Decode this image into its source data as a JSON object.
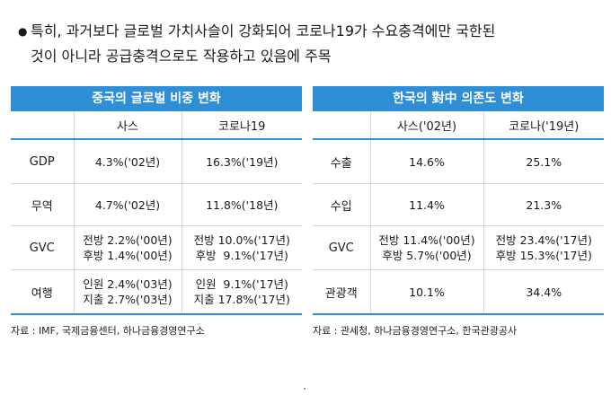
{
  "intro": {
    "bullet": "●",
    "line1": "특히, 과거보다 글로벌 가치사슬이 강화되어 코로나19가 수요충격에만 국한된",
    "line2": "것이 아니라 공급충격으로도 작용하고 있음에 주목"
  },
  "left_table": {
    "title": "중국의 글로벌 비중 변화",
    "headers": [
      "",
      "사스",
      "코로나19"
    ],
    "rows": [
      {
        "label": "GDP",
        "c1": [
          "4.3%('02년)"
        ],
        "c2": [
          "16.3%('19년)"
        ]
      },
      {
        "label": "무역",
        "c1": [
          "4.7%('02년)"
        ],
        "c2": [
          "11.8%('18년)"
        ]
      },
      {
        "label": "GVC",
        "c1": [
          "전방 2.2%('00년)",
          "후방 1.4%('00년)"
        ],
        "c2": [
          "전방 10.0%('17년)",
          "후방  9.1%('17년)"
        ]
      },
      {
        "label": "여행",
        "c1": [
          "인원 2.4%('03년)",
          "지출 2.7%('03년)"
        ],
        "c2": [
          "인원  9.1%('17년)",
          "지출 17.8%('17년)"
        ]
      }
    ],
    "source": "자료 : IMF, 국제금융센터, 하나금융경영연구소"
  },
  "right_table": {
    "title": "한국의 對中 의존도 변화",
    "headers": [
      "",
      "사스('02년)",
      "코로나('19년)"
    ],
    "rows": [
      {
        "label": "수출",
        "c1": [
          "14.6%"
        ],
        "c2": [
          "25.1%"
        ]
      },
      {
        "label": "수입",
        "c1": [
          "11.4%"
        ],
        "c2": [
          "21.3%"
        ]
      },
      {
        "label": "GVC",
        "c1": [
          "전방 11.4%('00년)",
          "후방 5.7%('00년)"
        ],
        "c2": [
          "전방 23.4%('17년)",
          "후방 15.3%('17년)"
        ]
      },
      {
        "label": "관광객",
        "c1": [
          "10.1%"
        ],
        "c2": [
          "34.4%"
        ]
      }
    ],
    "source": "자료 : 관세청, 하나금융경영연구소, 한국관광공사"
  },
  "colors": {
    "accent": "#2f8fd6",
    "grid": "#d6dbe0"
  }
}
